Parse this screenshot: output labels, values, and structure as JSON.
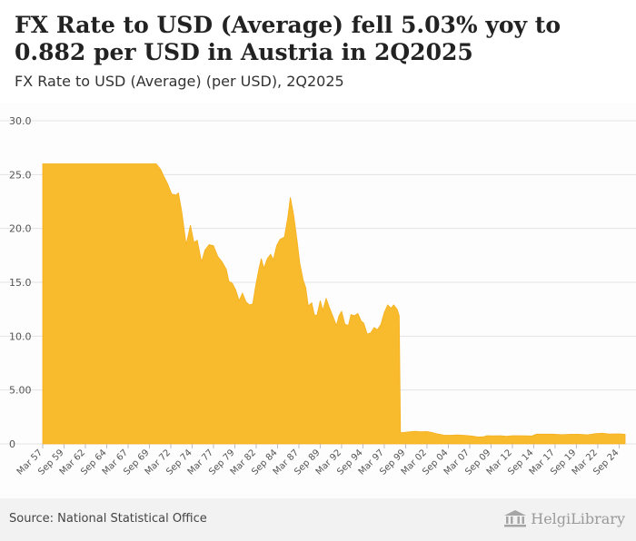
{
  "header": {
    "title": "FX Rate to USD (Average) fell 5.03% yoy to 0.882 per USD in Austria in 2Q2025",
    "subtitle": "FX Rate to USD (Average) (per USD), 2Q2025"
  },
  "footer": {
    "source": "Source: National Statistical Office",
    "logo_text": "HelgiLibrary"
  },
  "colors": {
    "fill": "#f9bb2e",
    "grid": "#e3e3e3",
    "axis_text": "#555555"
  },
  "chart_data": {
    "type": "area",
    "title": "FX Rate to USD (Average) fell 5.03% yoy to 0.882 per USD in Austria in 2Q2025",
    "subtitle": "FX Rate to USD (Average) (per USD), 2Q2025",
    "xlabel": "",
    "ylabel": "",
    "ylim": [
      0,
      30
    ],
    "xlim": [
      1957.2,
      2025.4
    ],
    "grid": true,
    "legend": "none",
    "y_ticks": [
      {
        "v": 0,
        "label": "0"
      },
      {
        "v": 5,
        "label": "5.00"
      },
      {
        "v": 10,
        "label": "10.0"
      },
      {
        "v": 15,
        "label": "15.0"
      },
      {
        "v": 20,
        "label": "20.0"
      },
      {
        "v": 25,
        "label": "25.0"
      },
      {
        "v": 30,
        "label": "30.0"
      }
    ],
    "x_ticks": [
      {
        "t": 1957.2,
        "label": "Mar 57"
      },
      {
        "t": 1959.7,
        "label": "Sep 59"
      },
      {
        "t": 1962.2,
        "label": "Mar 62"
      },
      {
        "t": 1964.7,
        "label": "Sep 64"
      },
      {
        "t": 1967.2,
        "label": "Mar 67"
      },
      {
        "t": 1969.7,
        "label": "Sep 69"
      },
      {
        "t": 1972.2,
        "label": "Mar 72"
      },
      {
        "t": 1974.7,
        "label": "Sep 74"
      },
      {
        "t": 1977.2,
        "label": "Mar 77"
      },
      {
        "t": 1979.7,
        "label": "Sep 79"
      },
      {
        "t": 1982.2,
        "label": "Mar 82"
      },
      {
        "t": 1984.7,
        "label": "Sep 84"
      },
      {
        "t": 1987.2,
        "label": "Mar 87"
      },
      {
        "t": 1989.7,
        "label": "Sep 89"
      },
      {
        "t": 1992.2,
        "label": "Mar 92"
      },
      {
        "t": 1994.7,
        "label": "Sep 94"
      },
      {
        "t": 1997.2,
        "label": "Mar 97"
      },
      {
        "t": 1999.7,
        "label": "Sep 99"
      },
      {
        "t": 2002.2,
        "label": "Mar 02"
      },
      {
        "t": 2004.7,
        "label": "Sep 04"
      },
      {
        "t": 2007.2,
        "label": "Mar 07"
      },
      {
        "t": 2009.7,
        "label": "Sep 09"
      },
      {
        "t": 2012.2,
        "label": "Mar 12"
      },
      {
        "t": 2014.7,
        "label": "Sep 14"
      },
      {
        "t": 2017.2,
        "label": "Mar 17"
      },
      {
        "t": 2019.7,
        "label": "Sep 19"
      },
      {
        "t": 2022.2,
        "label": "Mar 22"
      },
      {
        "t": 2024.7,
        "label": "Sep 24"
      }
    ],
    "series": [
      {
        "name": "FX Rate to USD (Average)",
        "points": [
          [
            1957.2,
            26.0
          ],
          [
            1960.0,
            26.0
          ],
          [
            1965.0,
            26.0
          ],
          [
            1969.0,
            26.0
          ],
          [
            1970.5,
            26.0
          ],
          [
            1971.0,
            25.5
          ],
          [
            1971.4,
            24.8
          ],
          [
            1971.8,
            24.2
          ],
          [
            1972.3,
            23.2
          ],
          [
            1972.8,
            23.1
          ],
          [
            1973.1,
            23.3
          ],
          [
            1973.5,
            21.5
          ],
          [
            1974.0,
            18.5
          ],
          [
            1974.5,
            20.3
          ],
          [
            1974.9,
            18.7
          ],
          [
            1975.3,
            18.9
          ],
          [
            1975.8,
            16.9
          ],
          [
            1976.2,
            18.0
          ],
          [
            1976.7,
            18.5
          ],
          [
            1977.2,
            18.4
          ],
          [
            1977.7,
            17.4
          ],
          [
            1978.2,
            16.9
          ],
          [
            1978.7,
            16.2
          ],
          [
            1979.0,
            15.1
          ],
          [
            1979.4,
            14.9
          ],
          [
            1979.8,
            14.3
          ],
          [
            1980.2,
            13.3
          ],
          [
            1980.6,
            14.0
          ],
          [
            1981.0,
            13.2
          ],
          [
            1981.4,
            12.9
          ],
          [
            1981.8,
            13.0
          ],
          [
            1982.1,
            14.5
          ],
          [
            1982.5,
            16.2
          ],
          [
            1982.8,
            17.2
          ],
          [
            1983.1,
            16.3
          ],
          [
            1983.5,
            17.2
          ],
          [
            1983.9,
            17.6
          ],
          [
            1984.2,
            17.1
          ],
          [
            1984.6,
            18.4
          ],
          [
            1985.0,
            19.0
          ],
          [
            1985.5,
            19.2
          ],
          [
            1985.9,
            21.0
          ],
          [
            1986.2,
            22.9
          ],
          [
            1986.6,
            21.2
          ],
          [
            1987.0,
            18.8
          ],
          [
            1987.3,
            16.8
          ],
          [
            1987.7,
            15.2
          ],
          [
            1988.0,
            14.5
          ],
          [
            1988.3,
            12.8
          ],
          [
            1988.7,
            13.1
          ],
          [
            1989.0,
            12.0
          ],
          [
            1989.3,
            11.9
          ],
          [
            1989.7,
            13.3
          ],
          [
            1990.0,
            12.4
          ],
          [
            1990.4,
            13.5
          ],
          [
            1990.8,
            12.6
          ],
          [
            1991.2,
            11.8
          ],
          [
            1991.6,
            11.0
          ],
          [
            1991.9,
            11.9
          ],
          [
            1992.2,
            12.3
          ],
          [
            1992.6,
            11.1
          ],
          [
            1993.0,
            11.0
          ],
          [
            1993.3,
            12.0
          ],
          [
            1993.7,
            11.9
          ],
          [
            1994.1,
            12.1
          ],
          [
            1994.5,
            11.4
          ],
          [
            1994.8,
            11.2
          ],
          [
            1995.2,
            10.2
          ],
          [
            1995.6,
            10.3
          ],
          [
            1996.0,
            10.8
          ],
          [
            1996.4,
            10.6
          ],
          [
            1996.8,
            11.1
          ],
          [
            1997.2,
            12.2
          ],
          [
            1997.6,
            12.9
          ],
          [
            1998.0,
            12.6
          ],
          [
            1998.3,
            12.9
          ],
          [
            1998.7,
            12.5
          ],
          [
            1998.95,
            11.9
          ],
          [
            1999.1,
            1.04
          ],
          [
            1999.5,
            1.06
          ],
          [
            2000.2,
            1.13
          ],
          [
            2000.8,
            1.17
          ],
          [
            2001.5,
            1.13
          ],
          [
            2002.2,
            1.15
          ],
          [
            2002.8,
            1.05
          ],
          [
            2003.5,
            0.91
          ],
          [
            2004.2,
            0.81
          ],
          [
            2005.0,
            0.8
          ],
          [
            2005.8,
            0.83
          ],
          [
            2006.6,
            0.79
          ],
          [
            2007.4,
            0.73
          ],
          [
            2008.2,
            0.64
          ],
          [
            2008.8,
            0.66
          ],
          [
            2009.2,
            0.76
          ],
          [
            2010.0,
            0.74
          ],
          [
            2010.8,
            0.76
          ],
          [
            2011.5,
            0.7
          ],
          [
            2012.2,
            0.76
          ],
          [
            2013.0,
            0.76
          ],
          [
            2013.8,
            0.74
          ],
          [
            2014.5,
            0.73
          ],
          [
            2015.0,
            0.9
          ],
          [
            2016.0,
            0.9
          ],
          [
            2017.0,
            0.9
          ],
          [
            2018.0,
            0.85
          ],
          [
            2019.0,
            0.89
          ],
          [
            2020.0,
            0.89
          ],
          [
            2021.0,
            0.84
          ],
          [
            2022.0,
            0.95
          ],
          [
            2022.8,
            0.99
          ],
          [
            2023.5,
            0.92
          ],
          [
            2024.3,
            0.93
          ],
          [
            2024.8,
            0.93
          ],
          [
            2025.0,
            0.92
          ],
          [
            2025.4,
            0.882
          ]
        ]
      }
    ]
  }
}
